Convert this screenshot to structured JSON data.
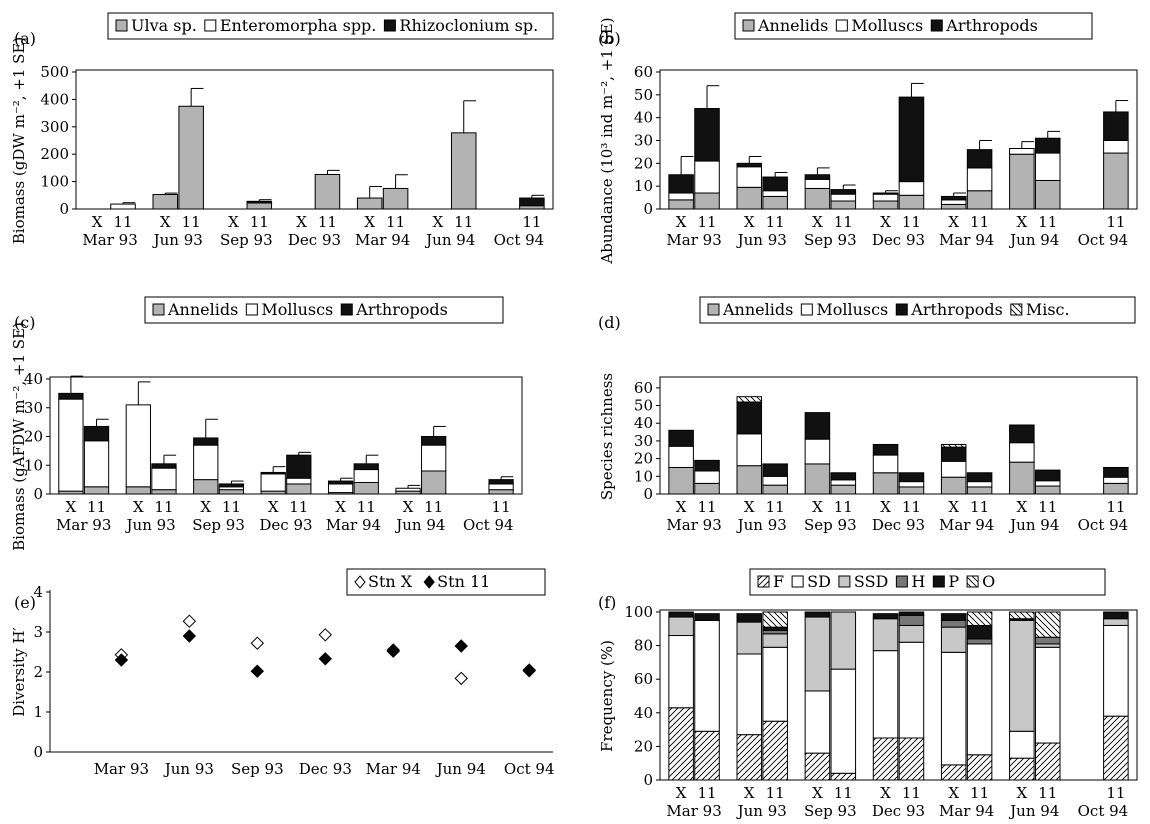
{
  "chart_data": [
    {
      "panel": "(a)",
      "type": "bar",
      "stacked": true,
      "ylabel": "Biomass (gDW m⁻², +1 SE)",
      "ylim": [
        0,
        500
      ],
      "yticks": [
        0,
        100,
        200,
        300,
        400,
        500
      ],
      "legend": [
        "Ulva sp.",
        "Enteromorpha spp.",
        "Rhizoclonium sp."
      ],
      "stations": [
        "X",
        "11"
      ],
      "dates": [
        "Mar 93",
        "Jun 93",
        "Sep 93",
        "Dec 93",
        "Mar 94",
        "Jun 94",
        "Oct 94"
      ],
      "series": [
        {
          "name": "Ulva sp.",
          "values": [
            [
              0,
              0
            ],
            [
              53,
              375
            ],
            [
              0,
              22
            ],
            [
              0,
              126
            ],
            [
              40,
              75
            ],
            [
              0,
              278
            ],
            [
              null,
              12
            ]
          ]
        },
        {
          "name": "Enteromorpha spp.",
          "values": [
            [
              0,
              18
            ],
            [
              0,
              0
            ],
            [
              0,
              0
            ],
            [
              0,
              0
            ],
            [
              0,
              0
            ],
            [
              0,
              0
            ],
            [
              null,
              0
            ]
          ]
        },
        {
          "name": "Rhizoclonium sp.",
          "values": [
            [
              0,
              0
            ],
            [
              0,
              0
            ],
            [
              0,
              6
            ],
            [
              0,
              0
            ],
            [
              0,
              0
            ],
            [
              0,
              0
            ],
            [
              null,
              28
            ]
          ]
        }
      ],
      "error": [
        [
          0,
          5
        ],
        [
          5,
          65
        ],
        [
          0,
          6
        ],
        [
          0,
          15
        ],
        [
          42,
          50
        ],
        [
          0,
          117
        ],
        [
          null,
          10
        ]
      ]
    },
    {
      "panel": "(b)",
      "type": "bar",
      "stacked": true,
      "ylabel": "Abundance (10³ ind m⁻², +1 SE)",
      "ylim": [
        0,
        60
      ],
      "yticks": [
        0,
        10,
        20,
        30,
        40,
        50,
        60
      ],
      "legend": [
        "Annelids",
        "Molluscs",
        "Arthropods"
      ],
      "stations": [
        "X",
        "11"
      ],
      "dates": [
        "Mar 93",
        "Jun 93",
        "Sep 93",
        "Dec 93",
        "Mar 94",
        "Jun 94",
        "Oct 94"
      ],
      "series": [
        {
          "name": "Annelids",
          "values": [
            [
              4,
              7
            ],
            [
              9.5,
              5.5
            ],
            [
              9,
              3.5
            ],
            [
              3.5,
              6
            ],
            [
              2,
              8
            ],
            [
              24,
              12.5
            ],
            [
              null,
              24.5
            ]
          ]
        },
        {
          "name": "Molluscs",
          "values": [
            [
              3,
              14
            ],
            [
              9,
              2.5
            ],
            [
              4,
              3
            ],
            [
              3,
              6
            ],
            [
              2,
              10
            ],
            [
              2.5,
              12
            ],
            [
              null,
              5.5
            ]
          ]
        },
        {
          "name": "Arthropods",
          "values": [
            [
              8,
              23
            ],
            [
              1.5,
              6
            ],
            [
              2,
              2
            ],
            [
              0.5,
              37
            ],
            [
              1.5,
              8
            ],
            [
              0,
              6.5
            ],
            [
              null,
              12.5
            ]
          ]
        }
      ],
      "error": [
        [
          8,
          10
        ],
        [
          3,
          2
        ],
        [
          3,
          2
        ],
        [
          1,
          6
        ],
        [
          1.5,
          4
        ],
        [
          3,
          3
        ],
        [
          null,
          5
        ]
      ]
    },
    {
      "panel": "(c)",
      "type": "bar",
      "stacked": true,
      "ylabel": "Biomass (gAFDW m⁻², +1 SE)",
      "ylim": [
        0,
        40
      ],
      "yticks": [
        0,
        10,
        20,
        30,
        40
      ],
      "legend": [
        "Annelids",
        "Molluscs",
        "Arthropods"
      ],
      "stations": [
        "X",
        "11"
      ],
      "dates": [
        "Mar 93",
        "Jun 93",
        "Sep 93",
        "Dec 93",
        "Mar 94",
        "Jun 94",
        "Oct 94"
      ],
      "series": [
        {
          "name": "Annelids",
          "values": [
            [
              1,
              2.5
            ],
            [
              2.5,
              1.5
            ],
            [
              5,
              1.5
            ],
            [
              1,
              3.5
            ],
            [
              0.5,
              4
            ],
            [
              1,
              8
            ],
            [
              null,
              1.5
            ]
          ]
        },
        {
          "name": "Molluscs",
          "values": [
            [
              32,
              16
            ],
            [
              28.5,
              7.5
            ],
            [
              12,
              1
            ],
            [
              6,
              2
            ],
            [
              3,
              4.5
            ],
            [
              1,
              9
            ],
            [
              null,
              2
            ]
          ]
        },
        {
          "name": "Arthropods",
          "values": [
            [
              2,
              5
            ],
            [
              0,
              1.5
            ],
            [
              2.5,
              1
            ],
            [
              0.5,
              8
            ],
            [
              1,
              2
            ],
            [
              0,
              3
            ],
            [
              null,
              1.5
            ]
          ]
        }
      ],
      "error": [
        [
          6,
          2.5
        ],
        [
          8,
          3
        ],
        [
          6.5,
          1
        ],
        [
          2,
          1
        ],
        [
          1,
          3
        ],
        [
          1,
          3.5
        ],
        [
          null,
          1
        ]
      ]
    },
    {
      "panel": "(d)",
      "type": "bar",
      "stacked": true,
      "ylabel": "Species richness",
      "ylim": [
        0,
        65
      ],
      "yticks": [
        0,
        10,
        20,
        30,
        40,
        50,
        60
      ],
      "legend": [
        "Annelids",
        "Molluscs",
        "Arthropods",
        "Misc."
      ],
      "stations": [
        "X",
        "11"
      ],
      "dates": [
        "Mar 93",
        "Jun 93",
        "Sep 93",
        "Dec 93",
        "Mar 94",
        "Jun 94",
        "Oct 94"
      ],
      "series": [
        {
          "name": "Annelids",
          "values": [
            [
              15,
              6
            ],
            [
              16,
              5
            ],
            [
              17,
              5
            ],
            [
              12,
              4
            ],
            [
              9.5,
              4
            ],
            [
              18,
              4.5
            ],
            [
              null,
              6
            ]
          ]
        },
        {
          "name": "Molluscs",
          "values": [
            [
              12,
              7
            ],
            [
              18,
              5
            ],
            [
              14,
              3
            ],
            [
              10,
              3
            ],
            [
              9,
              3
            ],
            [
              11,
              3
            ],
            [
              null,
              3.5
            ]
          ]
        },
        {
          "name": "Arthropods",
          "values": [
            [
              9,
              6
            ],
            [
              18,
              7
            ],
            [
              15,
              4
            ],
            [
              6,
              5
            ],
            [
              8,
              5
            ],
            [
              10,
              6
            ],
            [
              null,
              5.5
            ]
          ]
        },
        {
          "name": "Misc.",
          "values": [
            [
              0,
              0
            ],
            [
              3,
              0
            ],
            [
              0,
              0
            ],
            [
              0,
              0
            ],
            [
              1.5,
              0
            ],
            [
              0,
              0
            ],
            [
              null,
              0
            ]
          ]
        }
      ]
    },
    {
      "panel": "(e)",
      "type": "scatter",
      "ylabel": "Diversity H′",
      "ylim": [
        0,
        4
      ],
      "yticks": [
        0,
        1,
        2,
        3,
        4
      ],
      "legend": [
        "Stn X",
        "Stn 11"
      ],
      "categories": [
        "Mar 93",
        "Jun 93",
        "Sep 93",
        "Dec 93",
        "Mar 94",
        "Jun 94",
        "Oct 94"
      ],
      "series": [
        {
          "name": "Stn X",
          "values": [
            2.43,
            3.27,
            2.72,
            2.93,
            2.55,
            1.84,
            2.05
          ]
        },
        {
          "name": "Stn 11",
          "values": [
            2.3,
            2.9,
            2.02,
            2.33,
            2.52,
            2.65,
            2.03
          ]
        }
      ]
    },
    {
      "panel": "(f)",
      "type": "bar",
      "stacked": true,
      "ylabel": "Frequency (%)",
      "ylim": [
        0,
        100
      ],
      "yticks": [
        0,
        20,
        40,
        60,
        80,
        100
      ],
      "legend": [
        "F",
        "SD",
        "SSD",
        "H",
        "P",
        "O"
      ],
      "stations": [
        "X",
        "11"
      ],
      "dates": [
        "Mar 93",
        "Jun 93",
        "Sep 93",
        "Dec 93",
        "Mar 94",
        "Jun 94",
        "Oct 94"
      ],
      "series": [
        {
          "name": "F",
          "values": [
            [
              43,
              29
            ],
            [
              27,
              35
            ],
            [
              16,
              4
            ],
            [
              25,
              25
            ],
            [
              9,
              15
            ],
            [
              13,
              22
            ],
            [
              null,
              38
            ]
          ]
        },
        {
          "name": "SD",
          "values": [
            [
              43,
              66
            ],
            [
              48,
              44
            ],
            [
              37,
              62
            ],
            [
              52,
              57
            ],
            [
              67,
              66
            ],
            [
              16,
              57
            ],
            [
              null,
              54
            ]
          ]
        },
        {
          "name": "SSD",
          "values": [
            [
              11,
              0
            ],
            [
              19,
              8
            ],
            [
              44,
              34
            ],
            [
              19,
              10
            ],
            [
              15,
              0
            ],
            [
              66,
              2
            ],
            [
              null,
              4
            ]
          ]
        },
        {
          "name": "H",
          "values": [
            [
              0,
              0
            ],
            [
              0,
              2
            ],
            [
              0,
              0
            ],
            [
              0,
              6
            ],
            [
              4,
              3
            ],
            [
              0,
              4
            ],
            [
              null,
              0
            ]
          ]
        },
        {
          "name": "P",
          "values": [
            [
              3,
              4
            ],
            [
              5,
              2
            ],
            [
              3,
              0
            ],
            [
              3,
              2
            ],
            [
              4,
              8
            ],
            [
              1,
              0
            ],
            [
              null,
              4
            ]
          ]
        },
        {
          "name": "O",
          "values": [
            [
              0,
              0
            ],
            [
              0,
              9
            ],
            [
              0,
              0
            ],
            [
              0,
              0
            ],
            [
              0,
              8
            ],
            [
              4,
              15
            ],
            [
              null,
              0
            ]
          ]
        }
      ]
    }
  ]
}
